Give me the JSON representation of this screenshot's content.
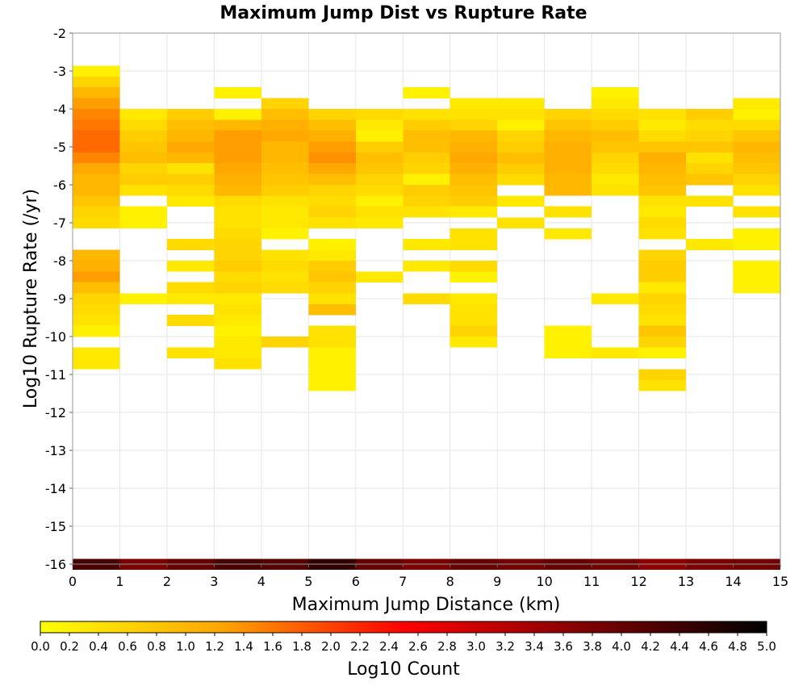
{
  "chart_data": {
    "type": "heatmap",
    "title": "Maximum Jump Dist vs Rupture Rate",
    "xlabel": "Maximum Jump Distance (km)",
    "ylabel": "Log10 Rupture Rate (/yr)",
    "xlim": [
      0,
      15
    ],
    "ylim": [
      -16,
      -2
    ],
    "x_ticks": [
      0,
      1,
      2,
      3,
      4,
      5,
      6,
      7,
      8,
      9,
      10,
      11,
      12,
      13,
      14,
      15
    ],
    "y_ticks": [
      -2,
      -3,
      -4,
      -5,
      -6,
      -7,
      -8,
      -9,
      -10,
      -11,
      -12,
      -13,
      -14,
      -15,
      -16
    ],
    "grid": true,
    "x_bin_width": 1,
    "y_bin_height": 0.2857,
    "colorbar": {
      "label": "Log10 Count",
      "range": [
        0,
        5
      ],
      "ticks": [
        "0.0",
        "0.2",
        "0.4",
        "0.6",
        "0.8",
        "1.0",
        "1.2",
        "1.4",
        "1.6",
        "1.8",
        "2.0",
        "2.2",
        "2.4",
        "2.6",
        "2.8",
        "3.0",
        "3.2",
        "3.4",
        "3.6",
        "3.8",
        "4.0",
        "4.2",
        "4.4",
        "4.6",
        "4.8",
        "5.0"
      ],
      "colors": [
        "#ffff00",
        "#ffa500",
        "#ff0000",
        "#800000",
        "#000000"
      ]
    },
    "cells": [
      {
        "x": 0,
        "y": -3.0,
        "v": 0.2
      },
      {
        "x": 0,
        "y": -3.29,
        "v": 0.6
      },
      {
        "x": 0,
        "y": -3.57,
        "v": 1.0
      },
      {
        "x": 0,
        "y": -3.86,
        "v": 1.3
      },
      {
        "x": 0,
        "y": -4.14,
        "v": 1.5
      },
      {
        "x": 0,
        "y": -4.43,
        "v": 1.6
      },
      {
        "x": 0,
        "y": -4.71,
        "v": 1.7
      },
      {
        "x": 0,
        "y": -5.0,
        "v": 1.7
      },
      {
        "x": 0,
        "y": -5.29,
        "v": 1.5
      },
      {
        "x": 0,
        "y": -5.57,
        "v": 1.2
      },
      {
        "x": 0,
        "y": -5.86,
        "v": 1.0
      },
      {
        "x": 0,
        "y": -6.14,
        "v": 1.0
      },
      {
        "x": 0,
        "y": -6.43,
        "v": 0.8
      },
      {
        "x": 0,
        "y": -6.71,
        "v": 0.6
      },
      {
        "x": 0,
        "y": -7.0,
        "v": 0.5
      },
      {
        "x": 0,
        "y": -7.86,
        "v": 1.0
      },
      {
        "x": 0,
        "y": -8.14,
        "v": 1.1
      },
      {
        "x": 0,
        "y": -8.43,
        "v": 1.3
      },
      {
        "x": 0,
        "y": -8.71,
        "v": 0.9
      },
      {
        "x": 0,
        "y": -9.0,
        "v": 0.6
      },
      {
        "x": 0,
        "y": -9.29,
        "v": 0.5
      },
      {
        "x": 0,
        "y": -9.57,
        "v": 0.4
      },
      {
        "x": 0,
        "y": -9.86,
        "v": 0.2
      },
      {
        "x": 0,
        "y": -10.43,
        "v": 0.3
      },
      {
        "x": 0,
        "y": -10.71,
        "v": 0.3
      },
      {
        "x": 1,
        "y": -4.14,
        "v": 0.3
      },
      {
        "x": 1,
        "y": -4.43,
        "v": 0.5
      },
      {
        "x": 1,
        "y": -4.71,
        "v": 0.7
      },
      {
        "x": 1,
        "y": -5.0,
        "v": 0.8
      },
      {
        "x": 1,
        "y": -5.29,
        "v": 0.9
      },
      {
        "x": 1,
        "y": -5.57,
        "v": 0.6
      },
      {
        "x": 1,
        "y": -5.86,
        "v": 0.7
      },
      {
        "x": 1,
        "y": -6.14,
        "v": 0.4
      },
      {
        "x": 1,
        "y": -6.71,
        "v": 0.2
      },
      {
        "x": 1,
        "y": -7.0,
        "v": 0.2
      },
      {
        "x": 1,
        "y": -9.0,
        "v": 0.2
      },
      {
        "x": 2,
        "y": -4.14,
        "v": 0.7
      },
      {
        "x": 2,
        "y": -4.43,
        "v": 0.9
      },
      {
        "x": 2,
        "y": -4.71,
        "v": 1.0
      },
      {
        "x": 2,
        "y": -5.0,
        "v": 1.2
      },
      {
        "x": 2,
        "y": -5.29,
        "v": 1.0
      },
      {
        "x": 2,
        "y": -5.57,
        "v": 0.4
      },
      {
        "x": 2,
        "y": -5.86,
        "v": 0.7
      },
      {
        "x": 2,
        "y": -6.14,
        "v": 0.5
      },
      {
        "x": 2,
        "y": -6.43,
        "v": 0.3
      },
      {
        "x": 2,
        "y": -7.57,
        "v": 0.5
      },
      {
        "x": 2,
        "y": -8.14,
        "v": 0.3
      },
      {
        "x": 2,
        "y": -8.71,
        "v": 0.5
      },
      {
        "x": 2,
        "y": -9.0,
        "v": 0.3
      },
      {
        "x": 2,
        "y": -9.57,
        "v": 0.5
      },
      {
        "x": 2,
        "y": -10.43,
        "v": 0.4
      },
      {
        "x": 3,
        "y": -3.57,
        "v": 0.2
      },
      {
        "x": 3,
        "y": -4.14,
        "v": 0.2
      },
      {
        "x": 3,
        "y": -4.43,
        "v": 1.0
      },
      {
        "x": 3,
        "y": -4.71,
        "v": 1.3
      },
      {
        "x": 3,
        "y": -5.0,
        "v": 1.3
      },
      {
        "x": 3,
        "y": -5.29,
        "v": 1.3
      },
      {
        "x": 3,
        "y": -5.57,
        "v": 1.2
      },
      {
        "x": 3,
        "y": -5.86,
        "v": 1.1
      },
      {
        "x": 3,
        "y": -6.14,
        "v": 1.0
      },
      {
        "x": 3,
        "y": -6.43,
        "v": 0.5
      },
      {
        "x": 3,
        "y": -6.71,
        "v": 0.4
      },
      {
        "x": 3,
        "y": -7.0,
        "v": 0.4
      },
      {
        "x": 3,
        "y": -7.29,
        "v": 0.5
      },
      {
        "x": 3,
        "y": -7.57,
        "v": 0.6
      },
      {
        "x": 3,
        "y": -7.86,
        "v": 0.6
      },
      {
        "x": 3,
        "y": -8.14,
        "v": 0.7
      },
      {
        "x": 3,
        "y": -8.43,
        "v": 0.5
      },
      {
        "x": 3,
        "y": -8.71,
        "v": 0.6
      },
      {
        "x": 3,
        "y": -9.0,
        "v": 0.3
      },
      {
        "x": 3,
        "y": -9.29,
        "v": 0.4
      },
      {
        "x": 3,
        "y": -9.57,
        "v": 0.3
      },
      {
        "x": 3,
        "y": -9.86,
        "v": 0.2
      },
      {
        "x": 3,
        "y": -10.14,
        "v": 0.3
      },
      {
        "x": 3,
        "y": -10.43,
        "v": 0.3
      },
      {
        "x": 3,
        "y": -10.71,
        "v": 0.4
      },
      {
        "x": 4,
        "y": -3.86,
        "v": 0.6
      },
      {
        "x": 4,
        "y": -4.14,
        "v": 0.9
      },
      {
        "x": 4,
        "y": -4.43,
        "v": 1.1
      },
      {
        "x": 4,
        "y": -4.71,
        "v": 1.2
      },
      {
        "x": 4,
        "y": -5.0,
        "v": 1.0
      },
      {
        "x": 4,
        "y": -5.29,
        "v": 1.0
      },
      {
        "x": 4,
        "y": -5.57,
        "v": 0.9
      },
      {
        "x": 4,
        "y": -5.86,
        "v": 0.8
      },
      {
        "x": 4,
        "y": -6.14,
        "v": 0.7
      },
      {
        "x": 4,
        "y": -6.43,
        "v": 0.4
      },
      {
        "x": 4,
        "y": -6.71,
        "v": 0.3
      },
      {
        "x": 4,
        "y": -7.0,
        "v": 0.3
      },
      {
        "x": 4,
        "y": -7.29,
        "v": 0.2
      },
      {
        "x": 4,
        "y": -7.86,
        "v": 0.4
      },
      {
        "x": 4,
        "y": -8.14,
        "v": 0.5
      },
      {
        "x": 4,
        "y": -8.43,
        "v": 0.4
      },
      {
        "x": 4,
        "y": -8.71,
        "v": 0.5
      },
      {
        "x": 4,
        "y": -10.14,
        "v": 0.6
      },
      {
        "x": 5,
        "y": -4.14,
        "v": 0.6
      },
      {
        "x": 5,
        "y": -4.43,
        "v": 0.9
      },
      {
        "x": 5,
        "y": -4.71,
        "v": 1.1
      },
      {
        "x": 5,
        "y": -5.0,
        "v": 1.3
      },
      {
        "x": 5,
        "y": -5.29,
        "v": 1.4
      },
      {
        "x": 5,
        "y": -5.57,
        "v": 1.2
      },
      {
        "x": 5,
        "y": -5.86,
        "v": 0.9
      },
      {
        "x": 5,
        "y": -6.14,
        "v": 0.6
      },
      {
        "x": 5,
        "y": -6.43,
        "v": 0.5
      },
      {
        "x": 5,
        "y": -6.71,
        "v": 0.6
      },
      {
        "x": 5,
        "y": -7.0,
        "v": 0.4
      },
      {
        "x": 5,
        "y": -7.57,
        "v": 0.2
      },
      {
        "x": 5,
        "y": -7.86,
        "v": 0.3
      },
      {
        "x": 5,
        "y": -8.14,
        "v": 0.7
      },
      {
        "x": 5,
        "y": -8.43,
        "v": 0.8
      },
      {
        "x": 5,
        "y": -8.71,
        "v": 0.6
      },
      {
        "x": 5,
        "y": -9.0,
        "v": 0.4
      },
      {
        "x": 5,
        "y": -9.29,
        "v": 0.9
      },
      {
        "x": 5,
        "y": -9.86,
        "v": 0.4
      },
      {
        "x": 5,
        "y": -10.14,
        "v": 0.4
      },
      {
        "x": 5,
        "y": -10.43,
        "v": 0.2
      },
      {
        "x": 5,
        "y": -10.71,
        "v": 0.2
      },
      {
        "x": 5,
        "y": -11.0,
        "v": 0.2
      },
      {
        "x": 5,
        "y": -11.29,
        "v": 0.2
      },
      {
        "x": 6,
        "y": -4.14,
        "v": 0.5
      },
      {
        "x": 6,
        "y": -4.43,
        "v": 0.3
      },
      {
        "x": 6,
        "y": -4.71,
        "v": 0.2
      },
      {
        "x": 6,
        "y": -5.0,
        "v": 0.7
      },
      {
        "x": 6,
        "y": -5.29,
        "v": 0.9
      },
      {
        "x": 6,
        "y": -5.57,
        "v": 0.8
      },
      {
        "x": 6,
        "y": -5.86,
        "v": 0.6
      },
      {
        "x": 6,
        "y": -6.14,
        "v": 0.5
      },
      {
        "x": 6,
        "y": -6.43,
        "v": 0.2
      },
      {
        "x": 6,
        "y": -6.71,
        "v": 0.4
      },
      {
        "x": 6,
        "y": -7.0,
        "v": 0.3
      },
      {
        "x": 6,
        "y": -8.43,
        "v": 0.3
      },
      {
        "x": 7,
        "y": -3.57,
        "v": 0.2
      },
      {
        "x": 7,
        "y": -4.14,
        "v": 0.4
      },
      {
        "x": 7,
        "y": -4.43,
        "v": 0.7
      },
      {
        "x": 7,
        "y": -4.71,
        "v": 0.9
      },
      {
        "x": 7,
        "y": -5.0,
        "v": 0.9
      },
      {
        "x": 7,
        "y": -5.29,
        "v": 0.7
      },
      {
        "x": 7,
        "y": -5.57,
        "v": 0.6
      },
      {
        "x": 7,
        "y": -5.86,
        "v": 0.2
      },
      {
        "x": 7,
        "y": -6.14,
        "v": 0.7
      },
      {
        "x": 7,
        "y": -6.43,
        "v": 0.6
      },
      {
        "x": 7,
        "y": -6.71,
        "v": 0.4
      },
      {
        "x": 7,
        "y": -7.57,
        "v": 0.3
      },
      {
        "x": 7,
        "y": -8.14,
        "v": 0.3
      },
      {
        "x": 7,
        "y": -9.0,
        "v": 0.5
      },
      {
        "x": 8,
        "y": -3.86,
        "v": 0.3
      },
      {
        "x": 8,
        "y": -4.14,
        "v": 0.4
      },
      {
        "x": 8,
        "y": -4.43,
        "v": 0.6
      },
      {
        "x": 8,
        "y": -4.71,
        "v": 1.0
      },
      {
        "x": 8,
        "y": -5.0,
        "v": 1.1
      },
      {
        "x": 8,
        "y": -5.29,
        "v": 1.2
      },
      {
        "x": 8,
        "y": -5.57,
        "v": 1.1
      },
      {
        "x": 8,
        "y": -5.86,
        "v": 0.9
      },
      {
        "x": 8,
        "y": -6.14,
        "v": 0.8
      },
      {
        "x": 8,
        "y": -6.43,
        "v": 0.7
      },
      {
        "x": 8,
        "y": -6.71,
        "v": 0.3
      },
      {
        "x": 8,
        "y": -7.29,
        "v": 0.4
      },
      {
        "x": 8,
        "y": -7.57,
        "v": 0.4
      },
      {
        "x": 8,
        "y": -8.14,
        "v": 0.5
      },
      {
        "x": 8,
        "y": -8.43,
        "v": 0.2
      },
      {
        "x": 8,
        "y": -9.0,
        "v": 0.3
      },
      {
        "x": 8,
        "y": -9.29,
        "v": 0.4
      },
      {
        "x": 8,
        "y": -9.57,
        "v": 0.4
      },
      {
        "x": 8,
        "y": -9.86,
        "v": 0.6
      },
      {
        "x": 8,
        "y": -10.14,
        "v": 0.3
      },
      {
        "x": 9,
        "y": -3.86,
        "v": 0.3
      },
      {
        "x": 9,
        "y": -4.14,
        "v": 0.4
      },
      {
        "x": 9,
        "y": -4.43,
        "v": 0.2
      },
      {
        "x": 9,
        "y": -4.71,
        "v": 0.6
      },
      {
        "x": 9,
        "y": -5.0,
        "v": 0.7
      },
      {
        "x": 9,
        "y": -5.29,
        "v": 0.9
      },
      {
        "x": 9,
        "y": -5.57,
        "v": 0.7
      },
      {
        "x": 9,
        "y": -5.86,
        "v": 0.5
      },
      {
        "x": 9,
        "y": -6.43,
        "v": 0.3
      },
      {
        "x": 9,
        "y": -7.0,
        "v": 0.4
      },
      {
        "x": 10,
        "y": -4.14,
        "v": 0.6
      },
      {
        "x": 10,
        "y": -4.43,
        "v": 0.8
      },
      {
        "x": 10,
        "y": -4.71,
        "v": 1.0
      },
      {
        "x": 10,
        "y": -5.0,
        "v": 1.1
      },
      {
        "x": 10,
        "y": -5.29,
        "v": 1.1
      },
      {
        "x": 10,
        "y": -5.57,
        "v": 1.1
      },
      {
        "x": 10,
        "y": -5.86,
        "v": 1.0
      },
      {
        "x": 10,
        "y": -6.14,
        "v": 1.0
      },
      {
        "x": 10,
        "y": -6.71,
        "v": 0.4
      },
      {
        "x": 10,
        "y": -7.29,
        "v": 0.3
      },
      {
        "x": 10,
        "y": -9.86,
        "v": 0.2
      },
      {
        "x": 10,
        "y": -10.14,
        "v": 0.2
      },
      {
        "x": 10,
        "y": -10.43,
        "v": 0.2
      },
      {
        "x": 11,
        "y": -3.57,
        "v": 0.2
      },
      {
        "x": 11,
        "y": -3.86,
        "v": 0.3
      },
      {
        "x": 11,
        "y": -4.14,
        "v": 0.5
      },
      {
        "x": 11,
        "y": -4.43,
        "v": 0.7
      },
      {
        "x": 11,
        "y": -4.71,
        "v": 0.9
      },
      {
        "x": 11,
        "y": -5.0,
        "v": 0.8
      },
      {
        "x": 11,
        "y": -5.29,
        "v": 0.6
      },
      {
        "x": 11,
        "y": -5.57,
        "v": 0.5
      },
      {
        "x": 11,
        "y": -5.86,
        "v": 0.3
      },
      {
        "x": 11,
        "y": -6.14,
        "v": 0.4
      },
      {
        "x": 11,
        "y": -9.0,
        "v": 0.3
      },
      {
        "x": 11,
        "y": -10.43,
        "v": 0.3
      },
      {
        "x": 12,
        "y": -4.14,
        "v": 0.4
      },
      {
        "x": 12,
        "y": -4.43,
        "v": 0.3
      },
      {
        "x": 12,
        "y": -4.71,
        "v": 0.5
      },
      {
        "x": 12,
        "y": -5.0,
        "v": 0.8
      },
      {
        "x": 12,
        "y": -5.29,
        "v": 1.1
      },
      {
        "x": 12,
        "y": -5.57,
        "v": 1.0
      },
      {
        "x": 12,
        "y": -5.86,
        "v": 0.9
      },
      {
        "x": 12,
        "y": -6.14,
        "v": 0.8
      },
      {
        "x": 12,
        "y": -6.43,
        "v": 0.4
      },
      {
        "x": 12,
        "y": -6.71,
        "v": 0.3
      },
      {
        "x": 12,
        "y": -7.0,
        "v": 0.5
      },
      {
        "x": 12,
        "y": -7.29,
        "v": 0.4
      },
      {
        "x": 12,
        "y": -7.86,
        "v": 0.6
      },
      {
        "x": 12,
        "y": -8.14,
        "v": 0.7
      },
      {
        "x": 12,
        "y": -8.43,
        "v": 0.7
      },
      {
        "x": 12,
        "y": -8.71,
        "v": 0.3
      },
      {
        "x": 12,
        "y": -9.0,
        "v": 0.6
      },
      {
        "x": 12,
        "y": -9.29,
        "v": 0.5
      },
      {
        "x": 12,
        "y": -9.57,
        "v": 0.4
      },
      {
        "x": 12,
        "y": -9.86,
        "v": 0.8
      },
      {
        "x": 12,
        "y": -10.14,
        "v": 0.6
      },
      {
        "x": 12,
        "y": -10.43,
        "v": 0.2
      },
      {
        "x": 12,
        "y": -11.0,
        "v": 0.6
      },
      {
        "x": 12,
        "y": -11.29,
        "v": 0.4
      },
      {
        "x": 13,
        "y": -4.14,
        "v": 0.7
      },
      {
        "x": 13,
        "y": -4.43,
        "v": 0.5
      },
      {
        "x": 13,
        "y": -4.71,
        "v": 0.6
      },
      {
        "x": 13,
        "y": -5.0,
        "v": 0.8
      },
      {
        "x": 13,
        "y": -5.29,
        "v": 0.4
      },
      {
        "x": 13,
        "y": -5.57,
        "v": 0.6
      },
      {
        "x": 13,
        "y": -5.86,
        "v": 0.8
      },
      {
        "x": 13,
        "y": -6.43,
        "v": 0.4
      },
      {
        "x": 13,
        "y": -7.57,
        "v": 0.3
      },
      {
        "x": 14,
        "y": -3.86,
        "v": 0.3
      },
      {
        "x": 14,
        "y": -4.14,
        "v": 0.2
      },
      {
        "x": 14,
        "y": -4.43,
        "v": 0.5
      },
      {
        "x": 14,
        "y": -4.71,
        "v": 0.8
      },
      {
        "x": 14,
        "y": -5.0,
        "v": 1.0
      },
      {
        "x": 14,
        "y": -5.29,
        "v": 0.9
      },
      {
        "x": 14,
        "y": -5.57,
        "v": 0.8
      },
      {
        "x": 14,
        "y": -5.86,
        "v": 0.6
      },
      {
        "x": 14,
        "y": -6.14,
        "v": 0.4
      },
      {
        "x": 14,
        "y": -6.71,
        "v": 0.4
      },
      {
        "x": 14,
        "y": -7.29,
        "v": 0.2
      },
      {
        "x": 14,
        "y": -7.57,
        "v": 0.2
      },
      {
        "x": 14,
        "y": -8.14,
        "v": 0.2
      },
      {
        "x": 14,
        "y": -8.43,
        "v": 0.2
      },
      {
        "x": 14,
        "y": -8.71,
        "v": 0.2
      },
      {
        "x": 0,
        "y": -16.0,
        "v": 4.3
      },
      {
        "x": 1,
        "y": -16.0,
        "v": 3.8
      },
      {
        "x": 2,
        "y": -16.0,
        "v": 4.0
      },
      {
        "x": 3,
        "y": -16.0,
        "v": 4.3
      },
      {
        "x": 4,
        "y": -16.0,
        "v": 4.2
      },
      {
        "x": 5,
        "y": -16.0,
        "v": 4.5
      },
      {
        "x": 6,
        "y": -16.0,
        "v": 4.0
      },
      {
        "x": 7,
        "y": -16.0,
        "v": 3.8
      },
      {
        "x": 8,
        "y": -16.0,
        "v": 4.0
      },
      {
        "x": 9,
        "y": -16.0,
        "v": 3.9
      },
      {
        "x": 10,
        "y": -16.0,
        "v": 4.0
      },
      {
        "x": 11,
        "y": -16.0,
        "v": 3.9
      },
      {
        "x": 12,
        "y": -16.0,
        "v": 3.6
      },
      {
        "x": 13,
        "y": -16.0,
        "v": 3.8
      },
      {
        "x": 14,
        "y": -16.0,
        "v": 3.9
      }
    ]
  }
}
